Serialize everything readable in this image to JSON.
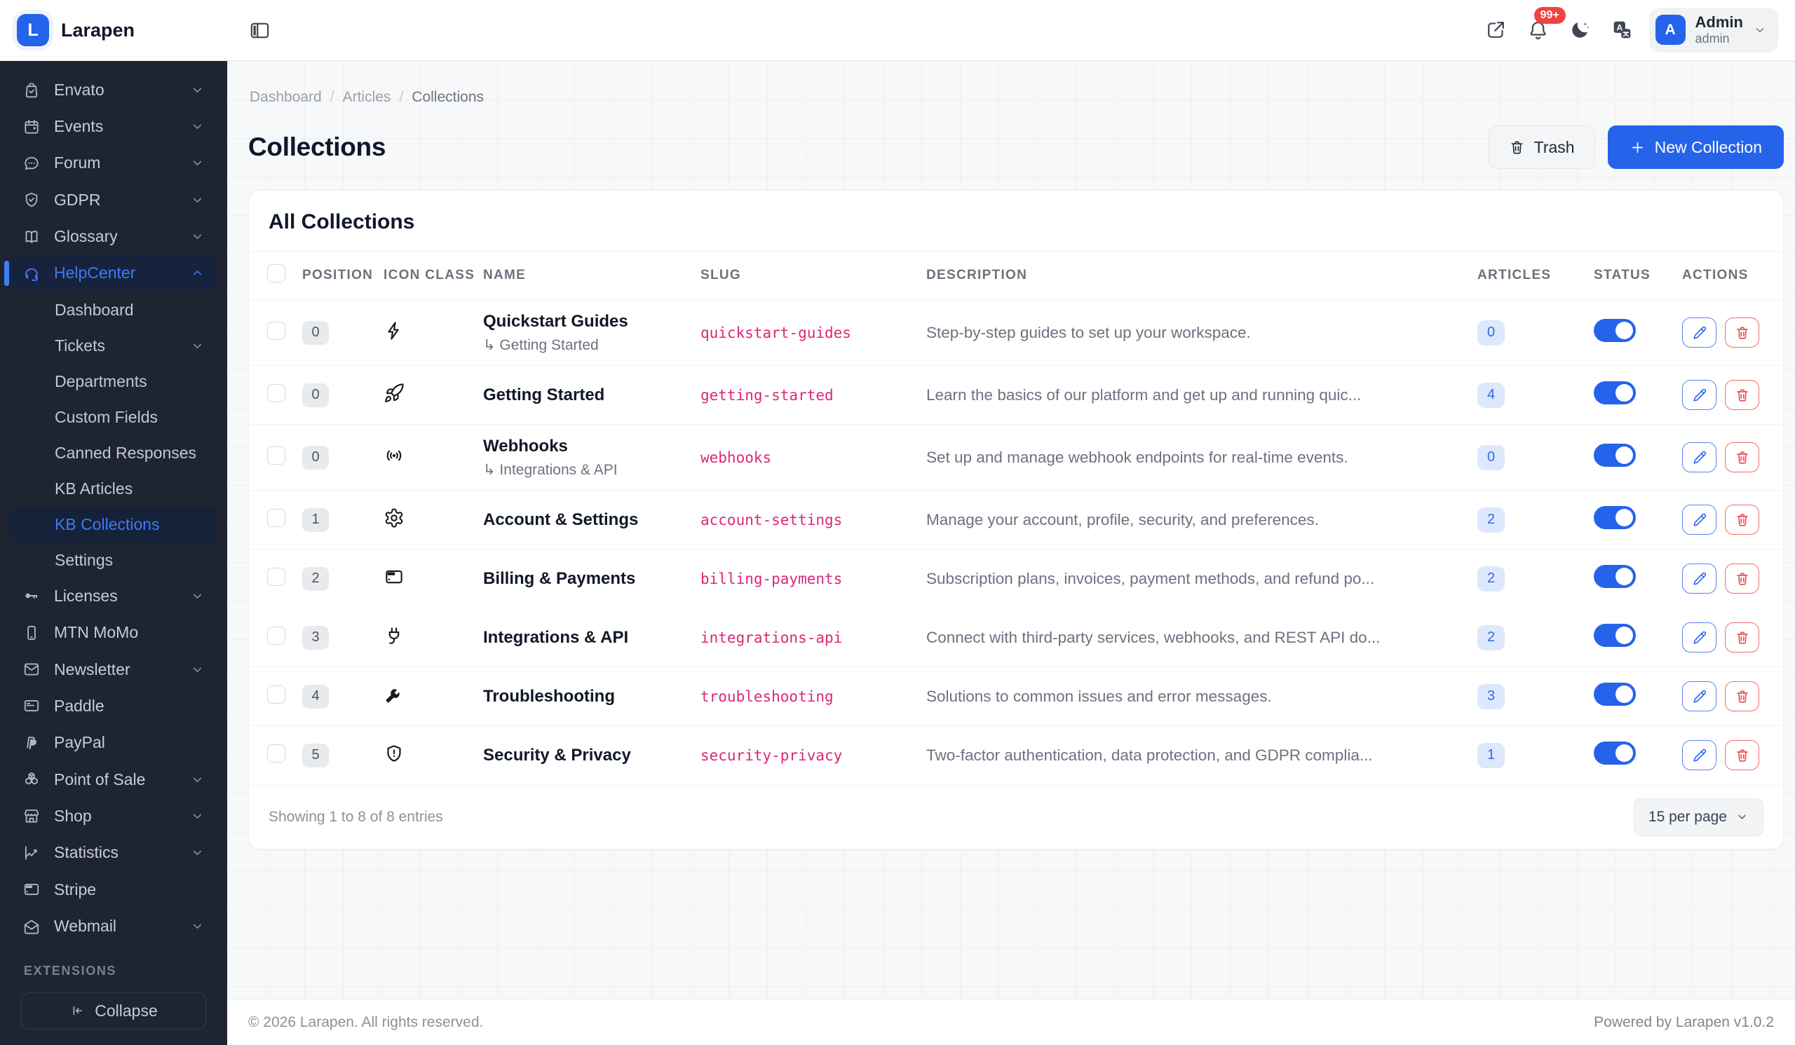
{
  "app": {
    "brand": "Larapen",
    "logo_letter": "L",
    "copyright": "© 2026 Larapen. All rights reserved.",
    "powered_by": "Powered by Larapen v1.0.2"
  },
  "colors": {
    "accent": "#2563eb",
    "sidebar_bg": "#1e2430",
    "slug_pink": "#db2777",
    "danger": "#ef4444",
    "badge_red": "#ef4444"
  },
  "header": {
    "notification_badge": "99+",
    "icons": [
      "panel-left-icon",
      "external-link-icon",
      "bell-icon",
      "moon-icon",
      "translate-icon"
    ],
    "user": {
      "avatar_letter": "A",
      "name": "Admin",
      "role": "admin"
    }
  },
  "sidebar": {
    "items": [
      {
        "label": "Envato",
        "icon": "bag-check",
        "chevron": "down"
      },
      {
        "label": "Events",
        "icon": "calendar",
        "chevron": "down"
      },
      {
        "label": "Forum",
        "icon": "message-dots",
        "chevron": "down"
      },
      {
        "label": "GDPR",
        "icon": "shield-check",
        "chevron": "down"
      },
      {
        "label": "Glossary",
        "icon": "book-open",
        "chevron": "down"
      },
      {
        "label": "HelpCenter",
        "icon": "headset",
        "chevron": "up",
        "active": true,
        "children": [
          {
            "label": "Dashboard"
          },
          {
            "label": "Tickets",
            "chevron": "down"
          },
          {
            "label": "Departments"
          },
          {
            "label": "Custom Fields"
          },
          {
            "label": "Canned Responses"
          },
          {
            "label": "KB Articles"
          },
          {
            "label": "KB Collections",
            "active": true
          },
          {
            "label": "Settings"
          }
        ]
      },
      {
        "label": "Licenses",
        "icon": "key",
        "chevron": "down"
      },
      {
        "label": "MTN MoMo",
        "icon": "smartphone"
      },
      {
        "label": "Newsletter",
        "icon": "mail",
        "chevron": "down"
      },
      {
        "label": "Paddle",
        "icon": "card-lines"
      },
      {
        "label": "PayPal",
        "icon": "paypal"
      },
      {
        "label": "Point of Sale",
        "icon": "cubes",
        "chevron": "down"
      },
      {
        "label": "Shop",
        "icon": "storefront",
        "chevron": "down"
      },
      {
        "label": "Statistics",
        "icon": "chart-line",
        "chevron": "down"
      },
      {
        "label": "Stripe",
        "icon": "credit-card"
      },
      {
        "label": "Webmail",
        "icon": "mail-open",
        "chevron": "down"
      }
    ],
    "extensions_label": "EXTENSIONS",
    "collapse_label": "Collapse"
  },
  "breadcrumb": [
    "Dashboard",
    "Articles",
    "Collections"
  ],
  "page": {
    "title": "Collections",
    "trash_label": "Trash",
    "new_collection_label": "New Collection"
  },
  "table": {
    "card_title": "All Collections",
    "columns": [
      "POSITION",
      "ICON CLASS",
      "NAME",
      "SLUG",
      "DESCRIPTION",
      "ARTICLES",
      "STATUS",
      "ACTIONS"
    ],
    "rows": [
      {
        "position": "0",
        "icon": "bolt",
        "name": "Quickstart Guides",
        "parent": "Getting Started",
        "slug": "quickstart-guides",
        "description": "Step-by-step guides to set up your workspace.",
        "articles": "0",
        "status_on": true
      },
      {
        "position": "0",
        "icon": "rocket",
        "name": "Getting Started",
        "parent": "",
        "slug": "getting-started",
        "description": "Learn the basics of our platform and get up and running quic...",
        "articles": "4",
        "status_on": true
      },
      {
        "position": "0",
        "icon": "broadcast",
        "name": "Webhooks",
        "parent": "Integrations & API",
        "slug": "webhooks",
        "description": "Set up and manage webhook endpoints for real-time events.",
        "articles": "0",
        "status_on": true
      },
      {
        "position": "1",
        "icon": "gear",
        "name": "Account & Settings",
        "parent": "",
        "slug": "account-settings",
        "description": "Manage your account, profile, security, and preferences.",
        "articles": "2",
        "status_on": true
      },
      {
        "position": "2",
        "icon": "credit-card",
        "name": "Billing & Payments",
        "parent": "",
        "slug": "billing-payments",
        "description": "Subscription plans, invoices, payment methods, and refund po...",
        "articles": "2",
        "status_on": true
      },
      {
        "position": "3",
        "icon": "plug",
        "name": "Integrations & API",
        "parent": "",
        "slug": "integrations-api",
        "description": "Connect with third-party services, webhooks, and REST API do...",
        "articles": "2",
        "status_on": true
      },
      {
        "position": "4",
        "icon": "wrench",
        "name": "Troubleshooting",
        "parent": "",
        "slug": "troubleshooting",
        "description": "Solutions to common issues and error messages.",
        "articles": "3",
        "status_on": true
      },
      {
        "position": "5",
        "icon": "shield-exclamation",
        "name": "Security & Privacy",
        "parent": "",
        "slug": "security-privacy",
        "description": "Two-factor authentication, data protection, and GDPR complia...",
        "articles": "1",
        "status_on": true
      }
    ],
    "footer": {
      "showing_text": "Showing 1 to 8 of 8 entries",
      "per_page": "15 per page"
    }
  }
}
